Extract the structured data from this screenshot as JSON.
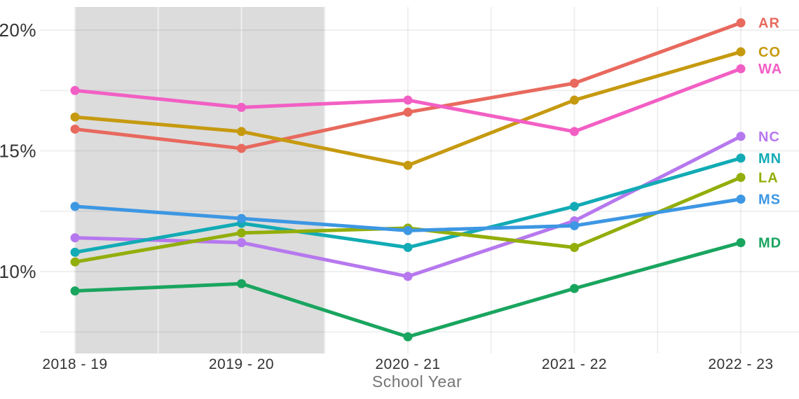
{
  "chart_data": {
    "type": "line",
    "title": "",
    "xlabel": "School Year",
    "ylabel": "",
    "x_categories": [
      "2018 - 19",
      "2019 - 20",
      "2020 - 21",
      "2021 - 22",
      "2022 - 23"
    ],
    "y_ticks": [
      {
        "label": "20%",
        "value": 20
      },
      {
        "label": "15%",
        "value": 15
      },
      {
        "label": "10%",
        "value": 10
      }
    ],
    "y_gridline_values": [
      20,
      17.5,
      15,
      12.5,
      10,
      7.5
    ],
    "x_gridline_step": 0.5,
    "ylim": [
      6.6,
      21
    ],
    "grid": "on",
    "legend_position": "right-end-labels",
    "shaded_region": {
      "from_index": 0,
      "to_index": 1.5,
      "color": "#dcdcdc"
    },
    "series": [
      {
        "name": "AR",
        "color": "#e8695e",
        "values": [
          15.9,
          15.1,
          16.6,
          17.8,
          20.3
        ]
      },
      {
        "name": "CO",
        "color": "#c69a10",
        "values": [
          16.4,
          15.8,
          14.4,
          17.1,
          19.1
        ]
      },
      {
        "name": "WA",
        "color": "#f25fc4",
        "values": [
          17.5,
          16.8,
          17.1,
          15.8,
          18.4
        ]
      },
      {
        "name": "NC",
        "color": "#b678ee",
        "values": [
          11.4,
          11.2,
          9.8,
          12.1,
          15.6
        ]
      },
      {
        "name": "MN",
        "color": "#12abb5",
        "values": [
          10.8,
          12.0,
          11.0,
          12.7,
          14.7
        ]
      },
      {
        "name": "LA",
        "color": "#92ae0b",
        "values": [
          10.4,
          11.6,
          11.8,
          11.0,
          13.9
        ]
      },
      {
        "name": "MS",
        "color": "#3d97e3",
        "values": [
          12.7,
          12.2,
          11.7,
          11.9,
          13.0
        ]
      },
      {
        "name": "MD",
        "color": "#1aa55f",
        "values": [
          9.2,
          9.5,
          7.3,
          9.3,
          11.2
        ]
      }
    ]
  },
  "colors": {
    "background": "#ffffff",
    "tick_text": "#333333",
    "axis_title_text": "#757575",
    "vertical_gridline": "#efefef",
    "horizontal_gridline": "rgba(0,0,0,0.06)"
  }
}
